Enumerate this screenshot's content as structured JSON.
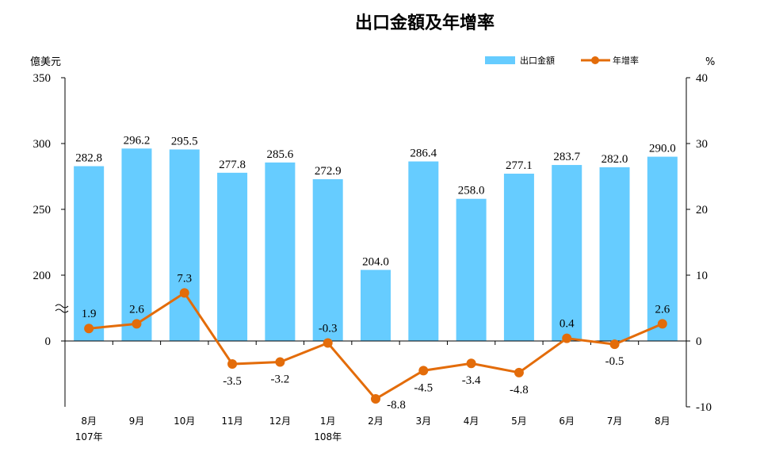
{
  "chart_data": {
    "type": "bar+line",
    "title": "出口金額及年增率",
    "left_unit": "億美元",
    "right_unit": "%",
    "categories": [
      "8月",
      "9月",
      "10月",
      "11月",
      "12月",
      "1月",
      "2月",
      "3月",
      "4月",
      "5月",
      "6月",
      "7月",
      "8月"
    ],
    "year_labels": [
      {
        "index": 0,
        "label": "107年"
      },
      {
        "index": 5,
        "label": "108年"
      }
    ],
    "series": [
      {
        "name": "出口金額",
        "type": "bar",
        "axis": "left",
        "color": "#66ccff",
        "values": [
          282.8,
          296.2,
          295.5,
          277.8,
          285.6,
          272.9,
          204.0,
          286.4,
          258.0,
          277.1,
          283.7,
          282.0,
          290.0
        ],
        "labels": [
          "282.8",
          "296.2",
          "295.5",
          "277.8",
          "285.6",
          "272.9",
          "204.0",
          "286.4",
          "258.0",
          "277.1",
          "283.7",
          "282.0",
          "290.0"
        ]
      },
      {
        "name": "年增率",
        "type": "line",
        "axis": "right",
        "color": "#e36c0a",
        "values": [
          1.9,
          2.6,
          7.3,
          -3.5,
          -3.2,
          -0.3,
          -8.8,
          -4.5,
          -3.4,
          -4.8,
          0.4,
          -0.5,
          2.6
        ],
        "labels": [
          "1.9",
          "2.6",
          "7.3",
          "-3.5",
          "-3.2",
          "-0.3",
          "-8.8",
          "-4.5",
          "-3.4",
          "-4.8",
          "0.4",
          "-0.5",
          "2.6"
        ]
      }
    ],
    "left_axis": {
      "ticks": [
        "350",
        "300",
        "250",
        "200",
        "0"
      ],
      "tick_values": [
        350,
        300,
        250,
        200,
        0
      ],
      "break": true
    },
    "right_axis": {
      "ticks": [
        "40",
        "30",
        "20",
        "10",
        "0",
        "-10"
      ],
      "ylim": [
        -10,
        40
      ]
    },
    "legend_position": "top-right",
    "grid": false
  }
}
